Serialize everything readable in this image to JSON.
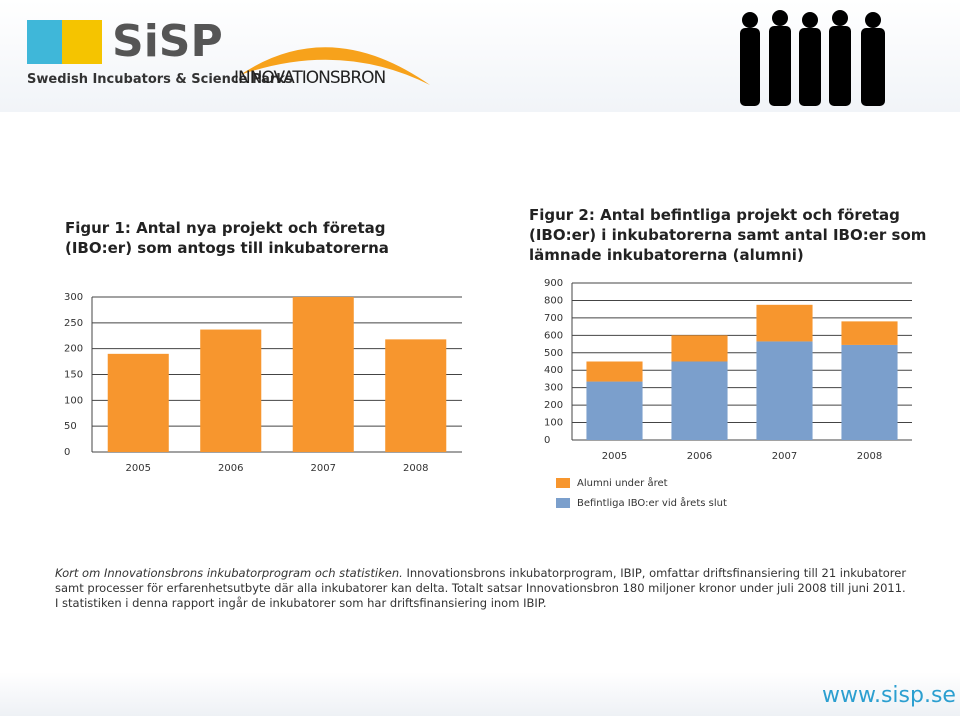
{
  "header": {
    "logo": "SiSP",
    "logo_subtitle": "Swedish Incubators & Science Parks",
    "partner": "INNOVATIONSBRON"
  },
  "chart_data": [
    {
      "type": "bar",
      "title": "Figur 1: Antal nya projekt och företag (IBO:er) som antogs till inkubatorerna",
      "categories": [
        "2005",
        "2006",
        "2007",
        "2008"
      ],
      "values": [
        190,
        237,
        300,
        218
      ],
      "color": "#f7962e",
      "ylim": [
        0,
        300
      ],
      "yticks": [
        0,
        50,
        100,
        150,
        200,
        250,
        300
      ],
      "grid": true
    },
    {
      "type": "stacked-bar",
      "title": "Figur 2: Antal befintliga projekt och företag (IBO:er) i inkubatorerna samt antal IBO:er som lämnade inkubatorerna (alumni)",
      "categories": [
        "2005",
        "2006",
        "2007",
        "2008"
      ],
      "series": [
        {
          "name": "Alumni under året",
          "color": "#f7962e",
          "values": [
            115,
            150,
            210,
            135
          ]
        },
        {
          "name": "Befintliga IBO:er vid årets slut",
          "color": "#7b9fcc",
          "values": [
            335,
            450,
            565,
            545
          ]
        }
      ],
      "ylim": [
        0,
        900
      ],
      "yticks": [
        0,
        100,
        200,
        300,
        400,
        500,
        600,
        700,
        800,
        900
      ],
      "grid": true,
      "legend": "bottom"
    }
  ],
  "caption": {
    "lead": "Kort om Innovationsbrons inkubatorprogram och statistiken.",
    "lines": [
      "Innovationsbrons inkubatorprogram, IBIP, omfattar driftsfinansiering till 21 inkubatorer samt processer för erfarenhetsutbyte där alla inkubatorer kan delta. Totalt satsar Innovationsbron 180 miljoner kronor under juli 2008 till juni 2011.",
      "I statistiken i denna rapport ingår de inkubatorer som har driftsfinansiering inom IBIP."
    ]
  },
  "footer": {
    "url": "www.sisp.se"
  }
}
